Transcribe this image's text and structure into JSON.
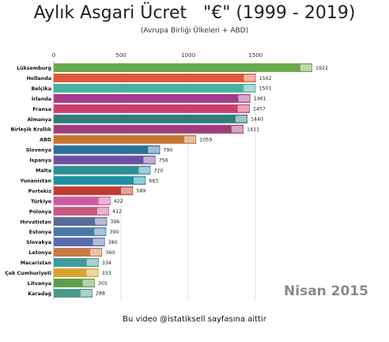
{
  "chart_data": {
    "type": "bar",
    "orientation": "horizontal",
    "title": "Aylık Asgari Ücret   \"€\" (1999 - 2019)",
    "subtitle": "(Avrupa Birliği Ülkeleri + ABD)",
    "period_label": "Nisan 2015",
    "footer": "Bu video @istatiksell sayfasına aittir",
    "xlim": [
      0,
      1922
    ],
    "xticks": [
      0,
      500,
      1000,
      1500
    ],
    "grid": true,
    "categories": [
      "Lüksemburg",
      "Hollanda",
      "Belçika",
      "İrlanda",
      "Fransa",
      "Almanya",
      "Birleşik Krallık",
      "ABD",
      "Slovenya",
      "İspanya",
      "Malta",
      "Yunanistan",
      "Portekiz",
      "Türkiye",
      "Polonya",
      "Hırvatistan",
      "Estonya",
      "Slovakya",
      "Letonya",
      "Macaristan",
      "Çek Cumhuriyeti",
      "Litvanya",
      "Karadağ"
    ],
    "values": [
      1922,
      1502,
      1501,
      1461,
      1457,
      1440,
      1411,
      1059,
      790,
      756,
      720,
      683,
      589,
      422,
      412,
      396,
      390,
      380,
      360,
      334,
      333,
      305,
      288
    ],
    "colors": [
      "#6aaa4f",
      "#e0573c",
      "#49b0a2",
      "#a73a8d",
      "#c9406d",
      "#2d7d7a",
      "#9c3e7a",
      "#c47331",
      "#2d6f9b",
      "#6b51a0",
      "#2f8f93",
      "#1f8fa1",
      "#c03a32",
      "#cf5ba0",
      "#c65a7e",
      "#5a6a96",
      "#4a78a8",
      "#5a6ab0",
      "#c97a44",
      "#3e9c9a",
      "#d8a430",
      "#5e9e4a",
      "#4c9a8a"
    ],
    "flag_icons": [
      "flag-luxembourg-icon",
      "flag-netherlands-icon",
      "flag-belgium-icon",
      "flag-ireland-icon",
      "flag-france-icon",
      "flag-germany-icon",
      "flag-uk-icon",
      "flag-usa-icon",
      "flag-slovenia-icon",
      "flag-spain-icon",
      "flag-malta-icon",
      "flag-greece-icon",
      "flag-portugal-icon",
      "flag-turkey-icon",
      "flag-poland-icon",
      "flag-croatia-icon",
      "flag-estonia-icon",
      "flag-slovakia-icon",
      "flag-latvia-icon",
      "flag-hungary-icon",
      "flag-czechia-icon",
      "flag-lithuania-icon",
      "flag-montenegro-icon"
    ]
  }
}
